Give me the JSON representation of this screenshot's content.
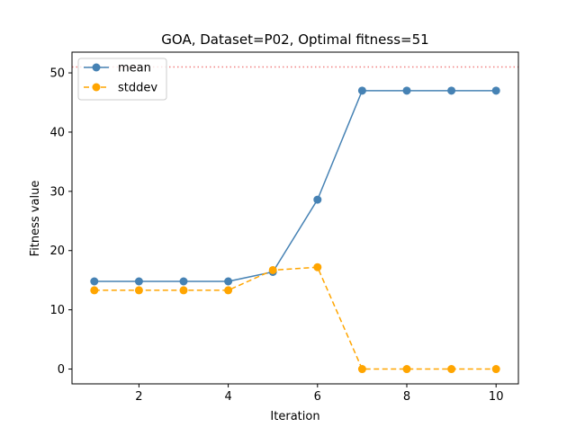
{
  "chart_data": {
    "type": "line",
    "title": "GOA, Dataset=P02, Optimal fitness=51",
    "xlabel": "Iteration",
    "ylabel": "Fitness value",
    "xlim": [
      0.5,
      10.5
    ],
    "ylim": [
      -2.5,
      53.5
    ],
    "xticks": [
      2,
      4,
      6,
      8,
      10
    ],
    "yticks": [
      0,
      10,
      20,
      30,
      40,
      50
    ],
    "x": [
      1,
      2,
      3,
      4,
      5,
      6,
      7,
      8,
      9,
      10
    ],
    "series": [
      {
        "name": "mean",
        "values": [
          14.8,
          14.8,
          14.8,
          14.8,
          16.4,
          28.6,
          47,
          47,
          47,
          47
        ],
        "color": "#4682b4",
        "line_style": "solid",
        "marker": "circle"
      },
      {
        "name": "stddev",
        "values": [
          13.3,
          13.3,
          13.3,
          13.3,
          16.7,
          17.2,
          0,
          0,
          0,
          0
        ],
        "color": "#ffa500",
        "line_style": "dashed",
        "marker": "circle"
      }
    ],
    "reference_line": {
      "y": 51,
      "color": "#f08080",
      "line_style": "dotted"
    },
    "legend": {
      "position": "top-left"
    },
    "grid": false
  }
}
